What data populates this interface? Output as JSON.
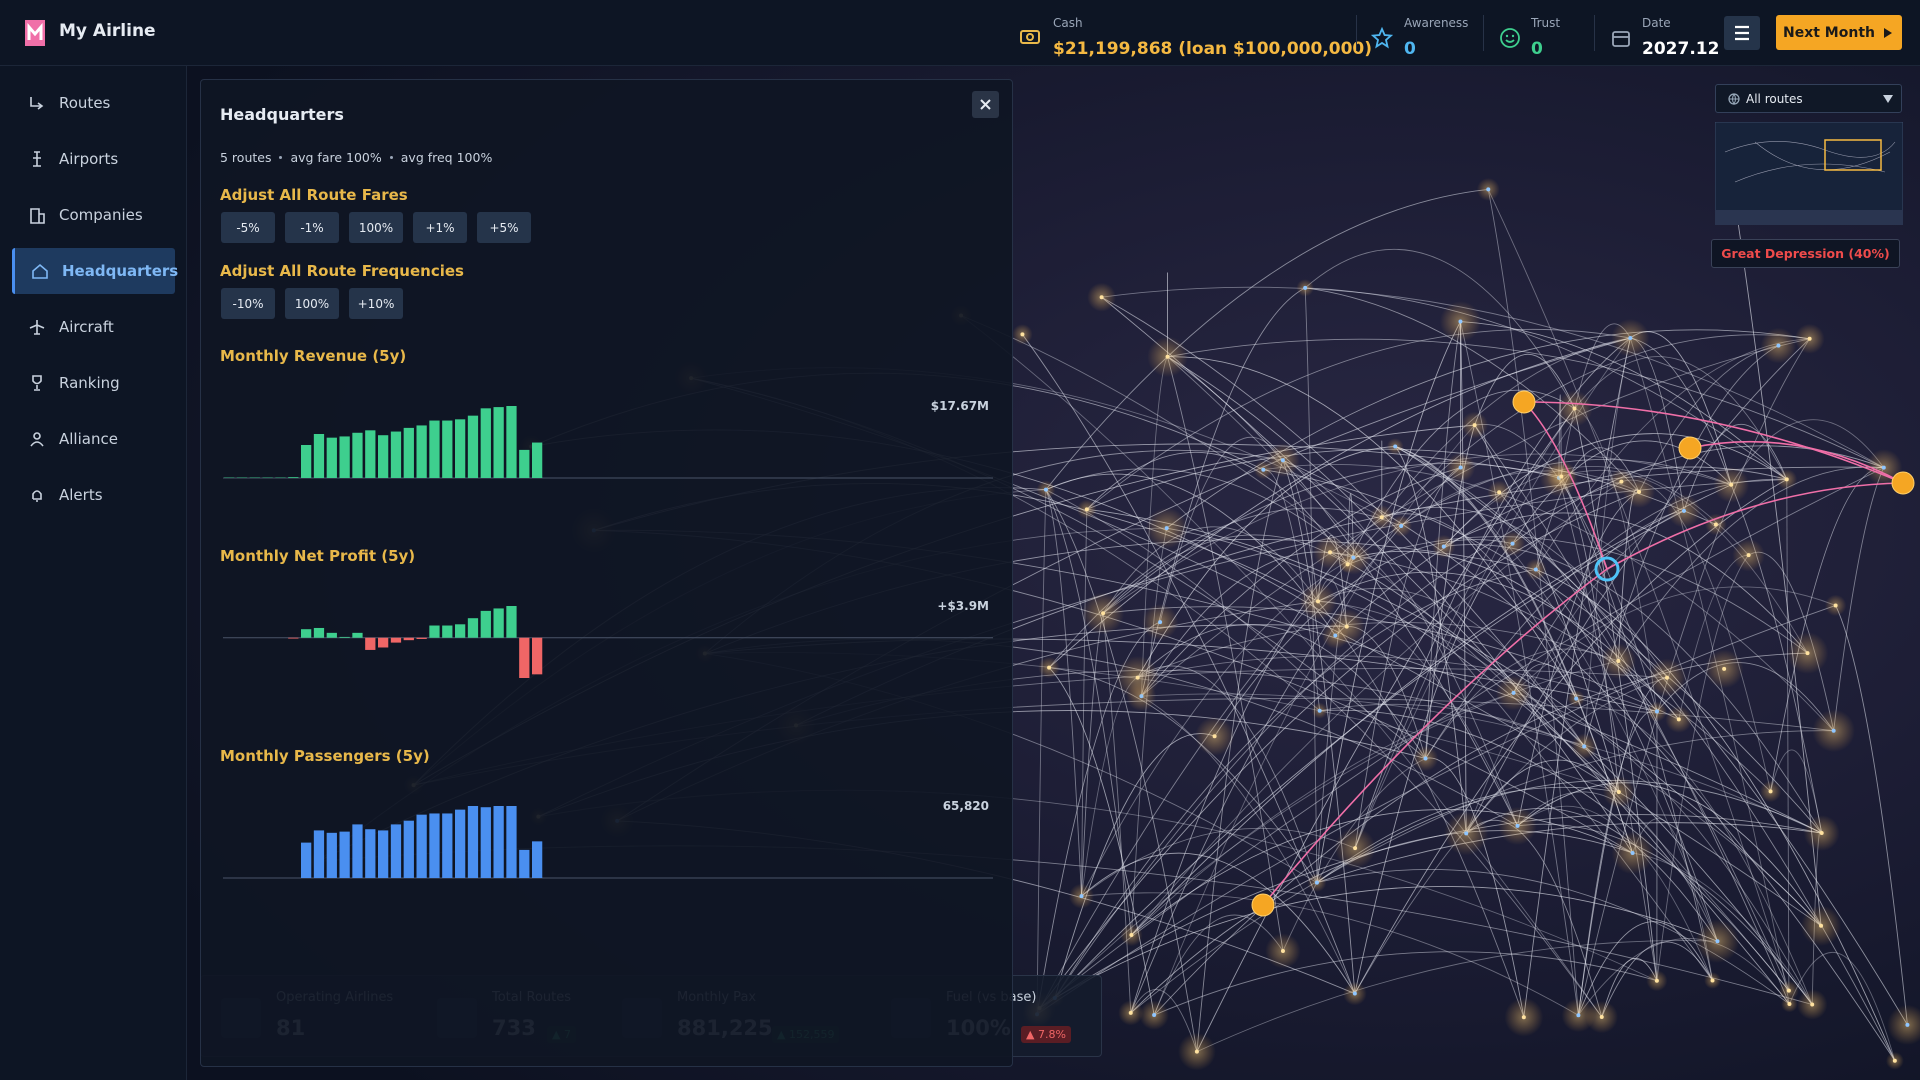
{
  "app": {
    "name": "My Airline"
  },
  "stats": [
    {
      "label": "Cash",
      "value": "$21,199,868 (loan $100,000,000)"
    },
    {
      "label": "Awareness",
      "value": "0"
    },
    {
      "label": "Trust",
      "value": "0"
    },
    {
      "label": "Date",
      "value": "2027.12"
    }
  ],
  "next_button": "Next Month",
  "nav": [
    "Routes",
    "Airports",
    "Companies",
    "Headquarters",
    "Aircraft",
    "Ranking",
    "Alliance",
    "Alerts"
  ],
  "panel": {
    "title": "Headquarters",
    "summary": [
      "5 routes",
      "avg fare 100%",
      "avg freq 100%"
    ],
    "fares": {
      "heading": "Adjust All Route Fares",
      "buttons": [
        "-5%",
        "-1%",
        "100%",
        "+1%",
        "+5%"
      ]
    },
    "frequencies": {
      "heading": "Adjust All Route Frequencies",
      "buttons": [
        "-10%",
        "100%",
        "+10%"
      ]
    },
    "charts": [
      {
        "type": "bar",
        "title": "Monthly Revenue (5y)",
        "color": "#3ecf8e",
        "max": {
          "value": 17.67,
          "label": "$17.67M"
        },
        "values": [
          0.1,
          0.1,
          0.1,
          0.1,
          0.1,
          0.2,
          8.1,
          10.8,
          9.9,
          10.2,
          11.1,
          11.7,
          10.5,
          11.4,
          12.3,
          12.9,
          14.1,
          14.1,
          14.4,
          15.3,
          17.1,
          17.4,
          17.67,
          6.9,
          8.7
        ]
      },
      {
        "type": "bar",
        "title": "Monthly Net Profit (5y)",
        "color": "#3ecf8e",
        "negative_color": "#f06666",
        "max": {
          "value": 3.9,
          "label": "+$3.9M"
        },
        "values": [
          0,
          0,
          0,
          0,
          0,
          -0.1,
          1.05,
          1.2,
          0.6,
          0.1,
          0.6,
          -1.5,
          -1.2,
          -0.6,
          -0.3,
          -0.15,
          1.5,
          1.5,
          1.65,
          2.4,
          3.3,
          3.6,
          3.9,
          -4.95,
          -4.5
        ]
      },
      {
        "type": "bar",
        "title": "Monthly Passengers (5y)",
        "color": "#4a8ff0",
        "max": {
          "value": 65820,
          "label": "65,820"
        },
        "values": [
          0,
          0,
          0,
          0,
          0,
          0,
          32350,
          43500,
          41300,
          42400,
          49000,
          44600,
          43500,
          49000,
          52400,
          57900,
          59000,
          59000,
          62500,
          65820,
          64700,
          65820,
          65820,
          25700,
          33500
        ]
      }
    ]
  },
  "map": {
    "filter": "All routes",
    "event": "Great Depression (40%)",
    "bottom_stats": [
      {
        "label": "Operating Airlines",
        "value": "81"
      },
      {
        "label": "Total Routes",
        "value": "733",
        "change": "▲ 7"
      },
      {
        "label": "Monthly Pax",
        "value": "881,225",
        "change": "▲ 152,559"
      },
      {
        "label": "Fuel (vs base)",
        "value": "100%",
        "change": "▲ 7.8%"
      }
    ]
  }
}
